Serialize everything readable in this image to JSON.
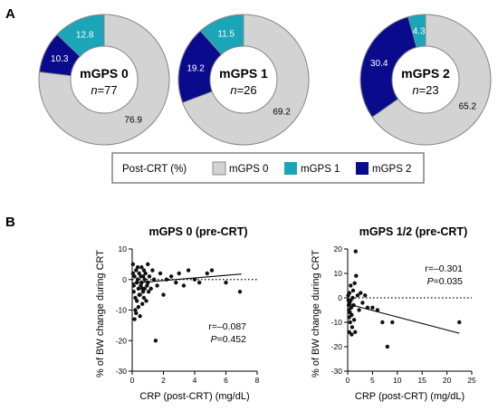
{
  "panels": {
    "a": "A",
    "b": "B"
  },
  "colors": {
    "mgps0": "#d3d3d3",
    "mgps1": "#1aa5b8",
    "mgps2": "#0a0a8c",
    "donut_stroke": "#8a8a8a",
    "points": "#111111"
  },
  "chart_data": [
    {
      "type": "pie",
      "variant": "donut",
      "center_title": "mGPS 0",
      "center_n_label": "n",
      "center_n_value": "=77",
      "slices": [
        {
          "label": "10.3",
          "value": 10.3,
          "category": "mGPS 2",
          "color": "#0a0a8c",
          "label_color": "#ffffff"
        },
        {
          "label": "12.8",
          "value": 12.8,
          "category": "mGPS 1",
          "color": "#1aa5b8",
          "label_color": "#ffffff"
        },
        {
          "label": "76.9",
          "value": 76.9,
          "category": "mGPS 0",
          "color": "#d3d3d3",
          "label_color": "#000000"
        }
      ]
    },
    {
      "type": "pie",
      "variant": "donut",
      "center_title": "mGPS 1",
      "center_n_label": "n",
      "center_n_value": "=26",
      "slices": [
        {
          "label": "19.2",
          "value": 19.2,
          "category": "mGPS 2",
          "color": "#0a0a8c",
          "label_color": "#ffffff"
        },
        {
          "label": "11.5",
          "value": 11.5,
          "category": "mGPS 1",
          "color": "#1aa5b8",
          "label_color": "#ffffff"
        },
        {
          "label": "69.2",
          "value": 69.2,
          "category": "mGPS 0",
          "color": "#d3d3d3",
          "label_color": "#000000"
        }
      ]
    },
    {
      "type": "pie",
      "variant": "donut",
      "center_title": "mGPS 2",
      "center_n_label": "n",
      "center_n_value": "=23",
      "slices": [
        {
          "label": "30.4",
          "value": 30.4,
          "category": "mGPS 2",
          "color": "#0a0a8c",
          "label_color": "#ffffff"
        },
        {
          "label": "4.3",
          "value": 4.3,
          "category": "mGPS 1",
          "color": "#1aa5b8",
          "label_color": "#ffffff"
        },
        {
          "label": "65.2",
          "value": 65.2,
          "category": "mGPS 0",
          "color": "#d3d3d3",
          "label_color": "#000000"
        }
      ]
    },
    {
      "type": "scatter",
      "title": "mGPS 0 (pre-CRT)",
      "xlabel": "CRP (post-CRT) (mg/dL)",
      "ylabel": "% of BW change during CRT",
      "xlim": [
        0,
        8
      ],
      "ylim": [
        -30,
        10
      ],
      "xticks": [
        "0",
        "2",
        "4",
        "6",
        "8"
      ],
      "yticks": [
        "10",
        "0",
        "-10",
        "-20",
        "-30"
      ],
      "zero_line": "dotted",
      "r_text": "r=–0.087",
      "p_label": "P",
      "p_value": "=0.452",
      "trend": [
        [
          0,
          -1.2
        ],
        [
          7,
          1.8
        ]
      ],
      "points": [
        [
          0.05,
          5
        ],
        [
          0.05,
          2
        ],
        [
          0.1,
          -2
        ],
        [
          0.1,
          -4
        ],
        [
          0.15,
          1
        ],
        [
          0.2,
          -6
        ],
        [
          0.2,
          -10
        ],
        [
          0.25,
          3
        ],
        [
          0.3,
          -1
        ],
        [
          0.3,
          -7
        ],
        [
          0.35,
          0
        ],
        [
          0.4,
          -3
        ],
        [
          0.4,
          -9
        ],
        [
          0.45,
          2
        ],
        [
          0.5,
          -12
        ],
        [
          0.5,
          -5
        ],
        [
          0.55,
          -2
        ],
        [
          0.6,
          4
        ],
        [
          0.6,
          -1
        ],
        [
          0.65,
          -8
        ],
        [
          0.7,
          1
        ],
        [
          0.7,
          -4
        ],
        [
          0.75,
          -6
        ],
        [
          0.8,
          0
        ],
        [
          0.8,
          -3
        ],
        [
          0.85,
          2
        ],
        [
          0.9,
          -7
        ],
        [
          0.95,
          -2
        ],
        [
          1.0,
          5
        ],
        [
          1.0,
          -1
        ],
        [
          1.05,
          -4
        ],
        [
          1.1,
          1
        ],
        [
          1.2,
          -3
        ],
        [
          1.3,
          3
        ],
        [
          1.4,
          0
        ],
        [
          1.5,
          -20
        ],
        [
          1.6,
          -2
        ],
        [
          1.8,
          2
        ],
        [
          2.0,
          -5
        ],
        [
          2.2,
          0
        ],
        [
          2.5,
          1
        ],
        [
          2.8,
          -1
        ],
        [
          3.0,
          2
        ],
        [
          3.3,
          -2
        ],
        [
          3.6,
          3
        ],
        [
          4.0,
          0
        ],
        [
          4.3,
          -1
        ],
        [
          4.8,
          2
        ],
        [
          5.1,
          3
        ],
        [
          6.0,
          -1
        ],
        [
          6.9,
          -4
        ],
        [
          0.15,
          -13
        ],
        [
          0.25,
          -11
        ],
        [
          0.35,
          4
        ],
        [
          0.45,
          -5
        ],
        [
          0.55,
          1
        ],
        [
          0.65,
          -3
        ],
        [
          0.75,
          3
        ]
      ]
    },
    {
      "type": "scatter",
      "title": "mGPS 1/2 (pre-CRT)",
      "xlabel": "CRP (post-CRT) (mg/dL)",
      "ylabel": "% of BW change during CRT",
      "xlim": [
        0,
        25
      ],
      "ylim": [
        -30,
        20
      ],
      "xticks": [
        "0",
        "5",
        "10",
        "15",
        "20",
        "25"
      ],
      "yticks": [
        "20",
        "10",
        "0",
        "-10",
        "-20",
        "-30"
      ],
      "zero_line": "dotted",
      "r_text": "r=–0.301",
      "p_label": "P",
      "p_value": "=0.035",
      "trend": [
        [
          0,
          -2.5
        ],
        [
          22.5,
          -14.5
        ]
      ],
      "points": [
        [
          0.1,
          1
        ],
        [
          0.15,
          -1
        ],
        [
          0.2,
          -3
        ],
        [
          0.25,
          -5
        ],
        [
          0.3,
          -8
        ],
        [
          0.35,
          2
        ],
        [
          0.4,
          -2
        ],
        [
          0.45,
          -6
        ],
        [
          0.5,
          -10
        ],
        [
          0.6,
          -1
        ],
        [
          0.7,
          -4
        ],
        [
          0.8,
          -7
        ],
        [
          0.9,
          -12
        ],
        [
          1.0,
          0
        ],
        [
          1.1,
          3
        ],
        [
          1.2,
          -3
        ],
        [
          1.3,
          -9
        ],
        [
          1.5,
          -14
        ],
        [
          1.6,
          19
        ],
        [
          1.7,
          9
        ],
        [
          2.0,
          1
        ],
        [
          2.3,
          -5
        ],
        [
          2.6,
          2
        ],
        [
          3.0,
          -2
        ],
        [
          3.5,
          1
        ],
        [
          4.0,
          -4
        ],
        [
          5.0,
          -4
        ],
        [
          6.0,
          -5
        ],
        [
          7.0,
          -10
        ],
        [
          8.0,
          -20
        ],
        [
          9.0,
          -10
        ],
        [
          22.5,
          -10
        ],
        [
          0.3,
          -14
        ],
        [
          0.6,
          5
        ],
        [
          0.8,
          -15
        ],
        [
          1.4,
          6
        ]
      ]
    }
  ],
  "legend": {
    "title": "Post-CRT (%)",
    "items": [
      {
        "label": "mGPS 0",
        "color": "#d3d3d3"
      },
      {
        "label": "mGPS 1",
        "color": "#1aa5b8"
      },
      {
        "label": "mGPS 2",
        "color": "#0a0a8c"
      }
    ]
  }
}
